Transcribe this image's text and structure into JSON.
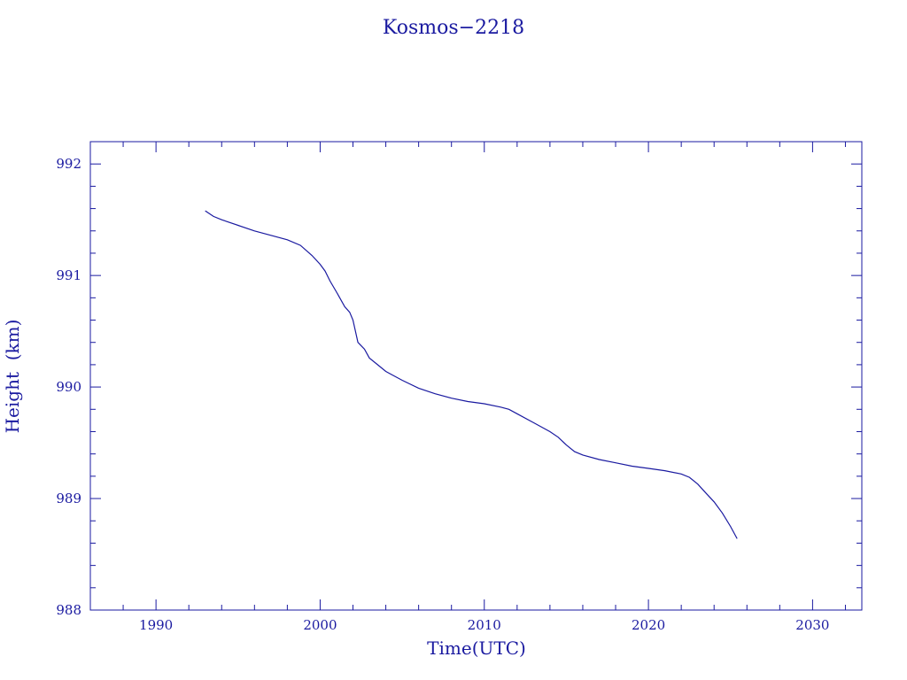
{
  "chart_data": {
    "type": "line",
    "title": "Kosmos−2218",
    "xlabel": "Time(UTC)",
    "ylabel": "Height  (km)",
    "xlim": [
      1986,
      2033
    ],
    "ylim": [
      988,
      992.2
    ],
    "x_ticks": [
      1990,
      2000,
      2010,
      2020,
      2030
    ],
    "x_tick_labels": [
      "1990",
      "2000",
      "2010",
      "2020",
      "2030"
    ],
    "y_ticks": [
      988,
      989,
      990,
      991,
      992
    ],
    "y_tick_labels": [
      "988",
      "989",
      "990",
      "991",
      "992"
    ],
    "grid": false,
    "colors": {
      "line": "#1a1aa0",
      "text": "#1a1aa0"
    },
    "series": [
      {
        "x": [
          1993.0,
          1993.5,
          1994.0,
          1995.0,
          1996.0,
          1997.0,
          1998.0,
          1998.8,
          1999.5,
          2000.0,
          2000.3,
          2000.6,
          2001.0,
          2001.5,
          2001.8,
          2002.0,
          2002.3,
          2002.7,
          2003.0,
          2003.5,
          2004.0,
          2004.5,
          2005.0,
          2006.0,
          2007.0,
          2008.0,
          2009.0,
          2010.0,
          2011.0,
          2011.5,
          2012.0,
          2013.0,
          2014.0,
          2014.5,
          2015.0,
          2015.5,
          2016.0,
          2017.0,
          2018.0,
          2019.0,
          2020.0,
          2021.0,
          2022.0,
          2022.5,
          2023.0,
          2023.5,
          2024.0,
          2024.5,
          2025.0,
          2025.4
        ],
        "y": [
          991.58,
          991.53,
          991.5,
          991.45,
          991.4,
          991.36,
          991.32,
          991.27,
          991.18,
          991.1,
          991.04,
          990.95,
          990.85,
          990.72,
          990.67,
          990.6,
          990.4,
          990.34,
          990.26,
          990.2,
          990.14,
          990.1,
          990.06,
          989.99,
          989.94,
          989.9,
          989.87,
          989.85,
          989.82,
          989.8,
          989.76,
          989.68,
          989.6,
          989.55,
          989.48,
          989.42,
          989.39,
          989.35,
          989.32,
          989.29,
          989.27,
          989.25,
          989.22,
          989.19,
          989.13,
          989.05,
          988.97,
          988.87,
          988.75,
          988.64
        ]
      }
    ]
  }
}
